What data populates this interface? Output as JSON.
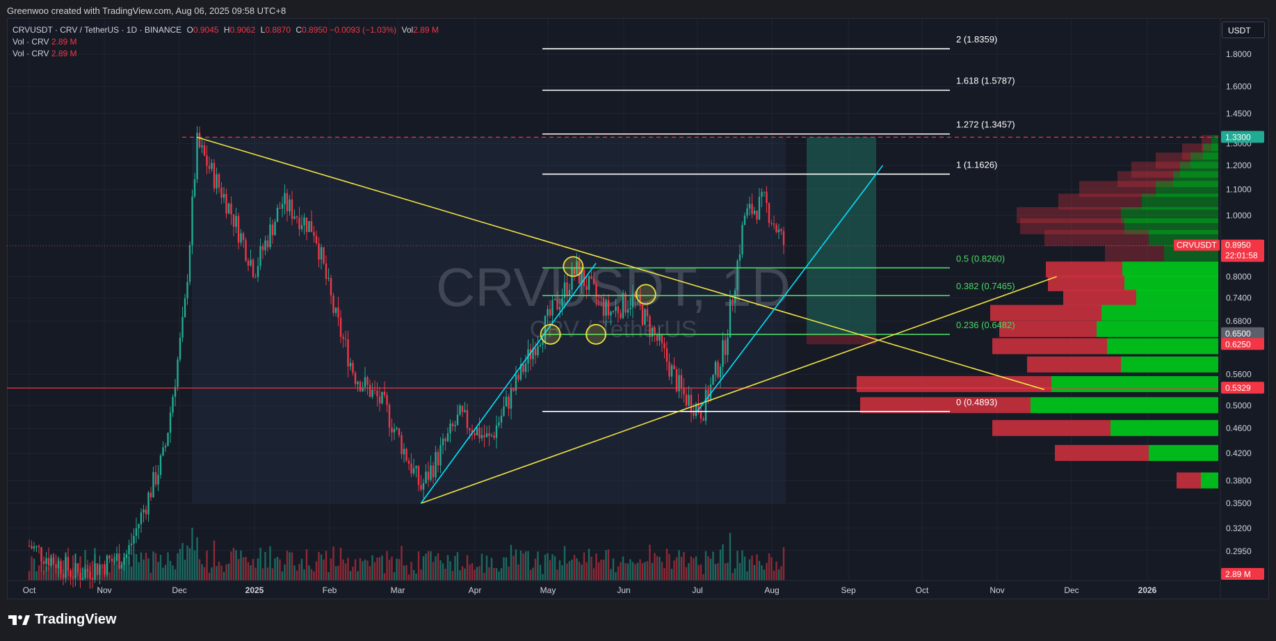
{
  "header": {
    "credit": "Greenwoo created with TradingView.com, Aug 06, 2025 09:58 UTC+8"
  },
  "legend": {
    "symbol": "CRVUSDT · CRV / TetherUS · 1D · BINANCE",
    "o_label": "O",
    "o_value": "0.9045",
    "h_label": "H",
    "h_value": "0.9062",
    "l_label": "L",
    "l_value": "0.8870",
    "c_label": "C",
    "c_value": "0.8950",
    "change": "−0.0093 (−1.03%)",
    "vol_label": "Vol",
    "vol_value": "2.89 M",
    "vol_line1_label": "Vol · CRV",
    "vol_line1_value": "2.89 M",
    "vol_line2_label": "Vol · CRV",
    "vol_line2_value": "2.89 M"
  },
  "watermark": {
    "main": "CRVUSDT, 1D",
    "sub": "CRV / TetherUS"
  },
  "currency_button": "USDT",
  "footer": {
    "brand": "TradingView"
  },
  "colors": {
    "up": "#22ab94",
    "down": "#f23645",
    "yellow": "#f0e442",
    "cyan": "#00e5ff",
    "green_line": "#4cd964",
    "white_line": "#ffffff",
    "red_hline": "#f23645"
  },
  "chart_data": {
    "type": "candlestick",
    "scale": "log",
    "ylim": [
      0.32,
      1.9
    ],
    "x_ticks": [
      "Oct",
      "Nov",
      "Dec",
      "2025",
      "Feb",
      "Mar",
      "Apr",
      "May",
      "Jun",
      "Jul",
      "Aug",
      "Sep",
      "Oct",
      "Nov",
      "Dec",
      "2026"
    ],
    "y_ticks": [
      "1.8000",
      "1.6000",
      "1.4500",
      "1.3000",
      "1.2000",
      "1.1000",
      "1.0000",
      "0.8000",
      "0.7400",
      "0.6800",
      "0.5600",
      "0.5000",
      "0.4600",
      "0.4200",
      "0.3800",
      "0.3500",
      "0.3200",
      "0.2950"
    ],
    "price_labels": [
      {
        "text": "1.3300",
        "color": "#22ab94"
      },
      {
        "text": "0.8950",
        "color": "#f23645",
        "name": "CRVUSDT",
        "countdown": "22:01:58"
      },
      {
        "text": "0.6500",
        "color": "#5d606b"
      },
      {
        "text": "0.6250",
        "color": "#f23645"
      },
      {
        "text": "0.5329",
        "color": "#f23645"
      },
      {
        "text": "2.89 M",
        "color": "#f23645"
      }
    ],
    "fib_levels": [
      {
        "label": "2 (1.8359)",
        "value": 1.8359,
        "color": "#ffffff"
      },
      {
        "label": "1.618 (1.5787)",
        "value": 1.5787,
        "color": "#ffffff"
      },
      {
        "label": "1.272 (1.3457)",
        "value": 1.3457,
        "color": "#ffffff"
      },
      {
        "label": "1 (1.1626)",
        "value": 1.1626,
        "color": "#ffffff"
      },
      {
        "label": "0.5 (0.8260)",
        "value": 0.826,
        "color": "#4cd964"
      },
      {
        "label": "0.382 (0.7465)",
        "value": 0.7465,
        "color": "#4cd964"
      },
      {
        "label": "0.236 (0.6482)",
        "value": 0.6482,
        "color": "#4cd964"
      },
      {
        "label": "0 (0.4893)",
        "value": 0.4893,
        "color": "#ffffff"
      }
    ],
    "horizontal_lines": [
      {
        "value": 1.33,
        "style": "dashed",
        "color": "#f23645"
      },
      {
        "value": 0.5329,
        "style": "solid",
        "color": "#f23645"
      }
    ],
    "trend_lines": [
      {
        "name": "descending-resistance",
        "color": "#f0e442",
        "from": [
          "2024-12-08",
          1.33
        ],
        "to": [
          "2025-11-20",
          0.53
        ]
      },
      {
        "name": "ascending-support",
        "color": "#f0e442",
        "from": [
          "2025-03-10",
          0.35
        ],
        "to": [
          "2025-11-25",
          0.8
        ]
      },
      {
        "name": "channel-support-1",
        "color": "#00e5ff",
        "from": [
          "2025-03-10",
          0.35
        ],
        "to": [
          "2025-05-20",
          0.84
        ]
      },
      {
        "name": "channel-support-2",
        "color": "#00e5ff",
        "from": [
          "2025-07-01",
          0.49
        ],
        "to": [
          "2025-09-15",
          1.2
        ]
      }
    ],
    "volume_profile_rows": [
      {
        "price": 1.3,
        "up": 10,
        "down": 14
      },
      {
        "price": 1.26,
        "up": 22,
        "down": 30
      },
      {
        "price": 1.22,
        "up": 40,
        "down": 50
      },
      {
        "price": 1.18,
        "up": 55,
        "down": 70
      },
      {
        "price": 1.14,
        "up": 65,
        "down": 80
      },
      {
        "price": 1.1,
        "up": 90,
        "down": 110
      },
      {
        "price": 1.05,
        "up": 110,
        "down": 120
      },
      {
        "price": 1.0,
        "up": 140,
        "down": 150
      },
      {
        "price": 0.96,
        "up": 135,
        "down": 150
      },
      {
        "price": 0.92,
        "up": 100,
        "down": 150
      },
      {
        "price": 0.87,
        "up": 78,
        "down": 85
      },
      {
        "price": 0.82,
        "up": 138,
        "down": 110
      },
      {
        "price": 0.78,
        "up": 135,
        "down": 110
      },
      {
        "price": 0.74,
        "up": 118,
        "down": 105
      },
      {
        "price": 0.7,
        "up": 168,
        "down": 160
      },
      {
        "price": 0.66,
        "up": 175,
        "down": 140
      },
      {
        "price": 0.62,
        "up": 160,
        "down": 165
      },
      {
        "price": 0.58,
        "up": 140,
        "down": 135
      },
      {
        "price": 0.54,
        "up": 240,
        "down": 280
      },
      {
        "price": 0.5,
        "up": 270,
        "down": 245
      },
      {
        "price": 0.46,
        "up": 155,
        "down": 170
      },
      {
        "price": 0.42,
        "up": 100,
        "down": 135
      },
      {
        "price": 0.38,
        "up": 25,
        "down": 35
      }
    ]
  }
}
